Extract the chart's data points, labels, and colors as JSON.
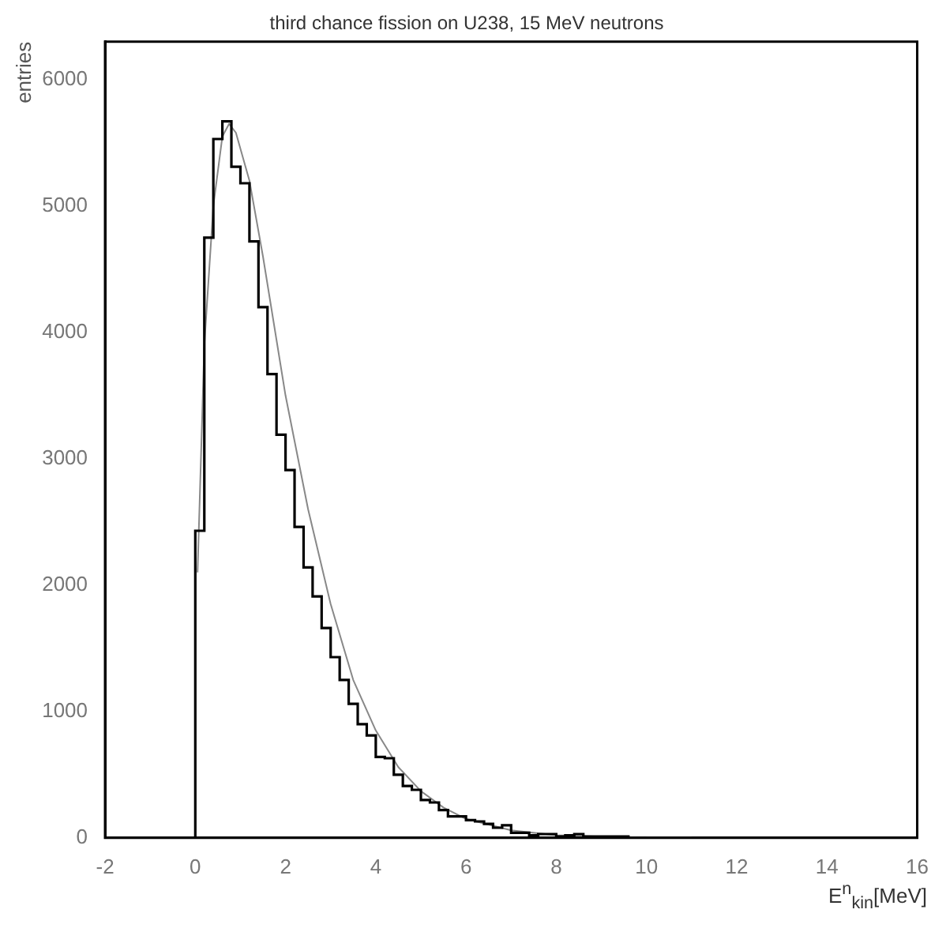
{
  "chart_data": {
    "type": "histogram",
    "title": "third chance fission on U238, 15 MeV neutrons",
    "xlabel": "E$^{n}$$_{kin}$[MeV]",
    "ylabel": "entries",
    "bins": [
      0,
      0.2,
      0.4,
      0.6,
      0.8,
      1.0,
      1.2,
      1.4,
      1.6,
      1.8,
      2.0,
      2.2,
      2.4,
      2.6,
      2.8,
      3.0,
      3.2,
      3.4,
      3.6,
      3.8,
      4.0,
      4.2,
      4.4,
      4.6,
      4.8,
      5.0,
      5.2,
      5.4,
      5.6,
      5.8,
      6.0,
      6.2,
      6.4,
      6.6,
      6.8,
      7.0,
      7.2,
      7.4,
      7.6,
      7.8,
      8.0,
      8.2,
      8.4,
      8.6,
      8.8,
      9.0,
      9.2,
      9.4,
      9.6,
      9.8,
      10.0
    ],
    "values": [
      2430,
      4750,
      5530,
      5670,
      5310,
      5180,
      4720,
      4200,
      3670,
      3190,
      2910,
      2460,
      2140,
      1910,
      1660,
      1430,
      1250,
      1060,
      900,
      810,
      640,
      630,
      500,
      410,
      380,
      300,
      280,
      220,
      170,
      170,
      140,
      130,
      110,
      80,
      100,
      40,
      40,
      20,
      30,
      30,
      10,
      20,
      30,
      10,
      10,
      10,
      10,
      10,
      0,
      0
    ],
    "color": "#000000",
    "series": [
      {
        "type": "line",
        "color": "#888888",
        "x": [
          0.05,
          0.2,
          0.4,
          0.6,
          0.75,
          0.9,
          1.2,
          1.5,
          2.0,
          2.5,
          3.0,
          3.5,
          4.0,
          4.5,
          5.0,
          5.5,
          6.0,
          7.0,
          8.0,
          9.0,
          10.0,
          11.0
        ],
        "values": [
          2100,
          3900,
          5000,
          5550,
          5650,
          5580,
          5200,
          4600,
          3500,
          2600,
          1850,
          1250,
          850,
          560,
          370,
          240,
          150,
          60,
          20,
          10,
          0,
          0
        ]
      }
    ],
    "xlim": [
      -2,
      16
    ],
    "xticks": [
      -2,
      0,
      2,
      4,
      6,
      8,
      10,
      12,
      14,
      16
    ],
    "ylim": [
      0,
      6300
    ],
    "yticks": [
      0,
      1000,
      2000,
      3000,
      4000,
      5000,
      6000
    ],
    "grid": false,
    "legend": false
  }
}
